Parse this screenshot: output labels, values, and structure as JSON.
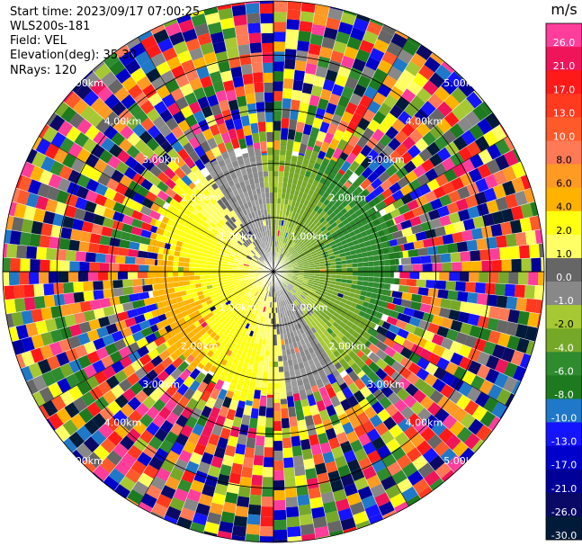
{
  "meta": {
    "start_time": "Start time: 2023/09/17 07:00:25",
    "instrument": "WLS200s-181",
    "field": "Field: VEL",
    "elevation": "Elevation(deg): 35.30",
    "nrays": "NRays: 120"
  },
  "colorbar": {
    "unit": "m/s",
    "ticks": [
      "26.0",
      "21.0",
      "17.0",
      "13.0",
      "10.0",
      "8.0",
      "6.0",
      "4.0",
      "2.0",
      "1.0",
      "0.0",
      "-1.0",
      "-2.0",
      "-4.0",
      "-6.0",
      "-8.0",
      "-10.0",
      "-13.0",
      "-17.0",
      "-21.0",
      "-26.0",
      "-30.0"
    ],
    "colors": [
      "#ff3d9a",
      "#f0145a",
      "#ff1a1a",
      "#ff3a1f",
      "#ff5a2a",
      "#ff7a55",
      "#ff9a22",
      "#ffb300",
      "#ffff10",
      "#ffff66",
      "#666666",
      "#888888",
      "#a6c832",
      "#76a828",
      "#2e8b2e",
      "#1e7a1e",
      "#1f78c8",
      "#1414ff",
      "#0000cc",
      "#000099",
      "#0a0a66",
      "#001a3a"
    ]
  },
  "chart_data": {
    "type": "ppi",
    "field": "VEL",
    "unit": "m/s",
    "nrays": 120,
    "elevation_deg": 35.3,
    "range_rings_km": [
      1.0,
      2.0,
      3.0,
      4.0,
      5.0
    ],
    "ring_labels": [
      "1.00km",
      "2.00km",
      "3.00km",
      "4.00km",
      "5.00km"
    ],
    "ring_label_azimuths_deg": [
      45,
      135,
      225,
      315
    ],
    "radial_lines_deg": [
      0,
      30,
      60,
      90,
      120,
      150,
      180,
      210,
      240,
      270,
      300,
      330
    ],
    "max_range_km": 5.0,
    "velocity_pattern": {
      "towards_sector_deg": [
        250,
        70
      ],
      "max_toward_ms": 6.0,
      "max_away_ms": -6.0,
      "clean_range_km": 2.3,
      "noise_range_km": [
        2.3,
        5.0
      ]
    }
  }
}
